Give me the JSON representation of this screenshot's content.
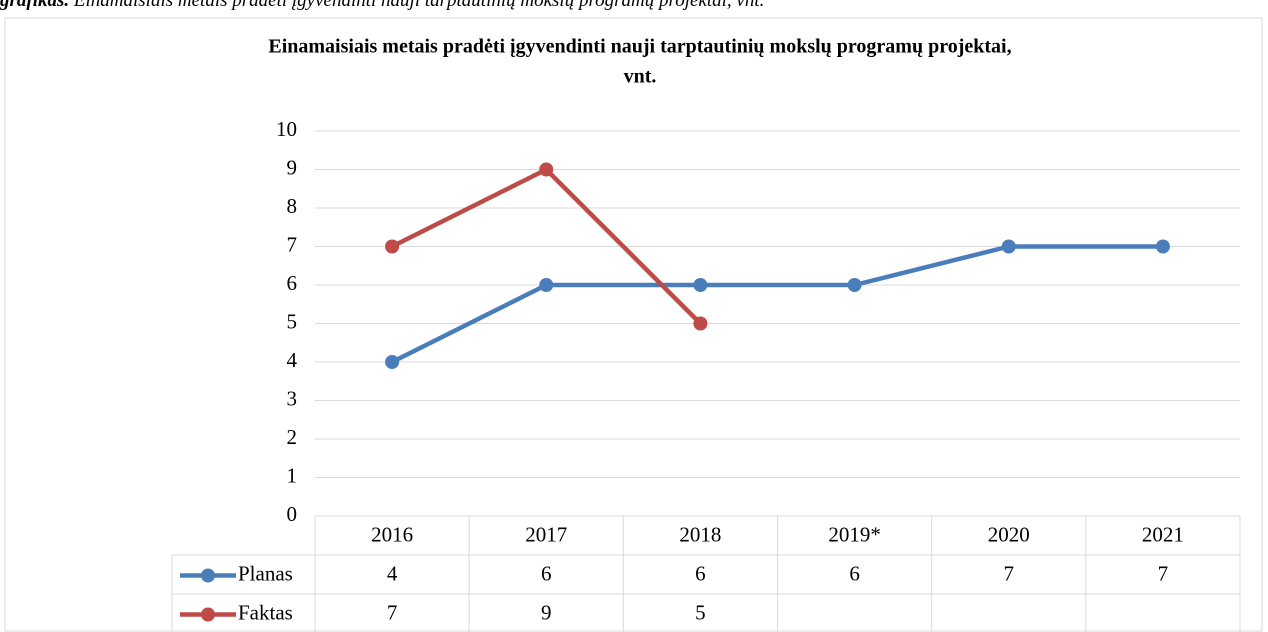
{
  "caption": {
    "label": "grafikas.",
    "text": "Einamaisiais metais pradėti įgyvendinti nauji tarptautinių mokslų programų projektai, vnt."
  },
  "chart_data": {
    "type": "line",
    "title": [
      "Einamaisiais metais pradėti įgyvendinti nauji tarptautinių mokslų programų projektai,",
      "vnt."
    ],
    "categories": [
      "2016",
      "2017",
      "2018",
      "2019*",
      "2020",
      "2021"
    ],
    "series": [
      {
        "name": "Planas",
        "color": "#4a7ebb",
        "values": [
          4,
          6,
          6,
          6,
          7,
          7
        ]
      },
      {
        "name": "Faktas",
        "color": "#be4b48",
        "values": [
          7,
          9,
          5,
          null,
          null,
          null
        ]
      }
    ],
    "ylim": [
      0,
      10
    ],
    "yticks": [
      0,
      1,
      2,
      3,
      4,
      5,
      6,
      7,
      8,
      9,
      10
    ],
    "grid": true,
    "data_table": true
  }
}
